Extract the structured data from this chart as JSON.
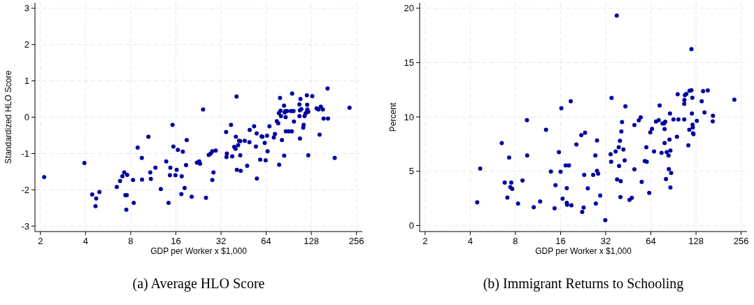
{
  "chart_data": [
    {
      "type": "scatter",
      "title": "(a) Average HLO Score",
      "xlabel": "GDP per Worker x $1,000",
      "ylabel": "Standardized HLO Score",
      "color": "#0000a0",
      "marker": "circle",
      "log": "x",
      "grid": true,
      "xlim": [
        1.84,
        280
      ],
      "xticks": [
        2,
        4,
        8,
        16,
        32,
        64,
        128,
        256
      ],
      "ylim": [
        -3.15,
        3.15
      ],
      "yticks": [
        -3,
        -2,
        -1,
        0,
        1,
        2,
        3
      ],
      "x": [
        2.12,
        3.93,
        4.43,
        4.71,
        4.66,
        4.95,
        6.46,
        6.79,
        7.04,
        7.24,
        7.58,
        7.37,
        7.53,
        7.48,
        8.29,
        8.38,
        8.9,
        9.49,
        9.52,
        10.5,
        10.8,
        10.9,
        11.7,
        12.7,
        13.8,
        14.3,
        14.7,
        14.6,
        15.2,
        15.4,
        16.2,
        15.9,
        16.5,
        17.8,
        17.5,
        17.4,
        18.3,
        18.7,
        18.9,
        20.4,
        22.1,
        22.9,
        23.2,
        24.3,
        25.4,
        26.5,
        27.3,
        28,
        29.5,
        28,
        28.5,
        34.6,
        35,
        34.8,
        37.3,
        38,
        39.2,
        40,
        40.2,
        40.6,
        40.8,
        41.6,
        42.2,
        43,
        43,
        43.3,
        46.1,
        47.8,
        49.5,
        49.7,
        53.2,
        54.7,
        55.3,
        55.5,
        58.4,
        59.6,
        60.4,
        62.6,
        63.5,
        64.9,
        65.4,
        67.3,
        72,
        73.2,
        75.4,
        77,
        78.1,
        77.8,
        79.2,
        79.8,
        80.3,
        81.5,
        84.2,
        84.4,
        85,
        86,
        86.3,
        86.6,
        88.2,
        90.7,
        93.6,
        94.9,
        95.3,
        97.4,
        98,
        106.7,
        106.7,
        107.5,
        108.3,
        107.5,
        109.8,
        113,
        113.8,
        115.4,
        117.1,
        119.2,
        119.6,
        120.1,
        120.5,
        122.2,
        122.2,
        129.9,
        138.9,
        142.9,
        145.4,
        148.1,
        152.9,
        154.5,
        164.2,
        165.3,
        183.3,
        230.1
      ],
      "values": [
        -1.65,
        -1.26,
        -2.13,
        -2.24,
        -2.45,
        -2.06,
        -1.92,
        -1.76,
        -1.63,
        -1.52,
        -1.59,
        -2.15,
        -2.15,
        -2.55,
        -1.73,
        -2.36,
        -0.84,
        -1.12,
        -1.72,
        -0.54,
        -1.52,
        -1.7,
        -1.39,
        -1.98,
        -1.22,
        -2.36,
        -1.39,
        -1.6,
        -0.21,
        -0.81,
        -1.45,
        -1.6,
        -0.9,
        -0.95,
        -1.63,
        -2.12,
        -1.95,
        -1.32,
        -0.63,
        -2.19,
        -1.25,
        -1.22,
        -1.28,
        0.21,
        -2.22,
        -1.04,
        -1,
        -0.94,
        -0.92,
        -1.73,
        -1.52,
        -0.41,
        -1,
        -1.1,
        -0.21,
        -1.08,
        -0.82,
        -0.87,
        -0.54,
        0.57,
        -1.45,
        -0.77,
        -0.65,
        -0.66,
        -1.05,
        -1.48,
        -0.65,
        -1.34,
        -0.69,
        -0.35,
        -0.25,
        -0.81,
        -0.45,
        -1.69,
        -1.17,
        -0.53,
        -0.54,
        -0.71,
        -1.19,
        -0.51,
        -0.94,
        -0.25,
        -0.56,
        -0.46,
        -0.11,
        -0.17,
        -1.31,
        0.11,
        0.53,
        0.18,
        0.03,
        -0.63,
        0.32,
        -1.06,
        0.13,
        0.17,
        0,
        -0.39,
        0.17,
        -0.39,
        0.17,
        -0.39,
        0.65,
        0.17,
        -0.12,
        0.35,
        0.03,
        -0.59,
        0.5,
        0.19,
        0.22,
        -0.29,
        -0.21,
        0.03,
        0.1,
        0.14,
        0.6,
        0.34,
        0.21,
        0.15,
        -1.05,
        0.58,
        0.24,
        0.21,
        -0.48,
        0.29,
        0.21,
        -0.04,
        0.79,
        -0.04,
        -1.12,
        0.26
      ]
    },
    {
      "type": "scatter",
      "title": "(b) Immigrant Returns to Schooling",
      "xlabel": "GDP per Worker x $1,000",
      "ylabel": "Percent",
      "color": "#0000a0",
      "marker": "circle",
      "log": "x",
      "grid": true,
      "xlim": [
        1.84,
        280
      ],
      "xticks": [
        2,
        4,
        8,
        16,
        32,
        64,
        128,
        256
      ],
      "ylim": [
        -0.55,
        20.5
      ],
      "yticks": [
        0,
        5,
        10,
        15,
        20
      ],
      "x": [
        4.45,
        4.66,
        6.49,
        6.79,
        7.07,
        7.27,
        7.4,
        7.51,
        7.62,
        8.33,
        8.92,
        9.55,
        9.58,
        10.6,
        11.7,
        12.8,
        13.8,
        14.6,
        14.8,
        15.6,
        16,
        16.2,
        16.5,
        17.3,
        18.2,
        18.7,
        17.6,
        17.6,
        17.7,
        18.9,
        20.4,
        22,
        23.3,
        23,
        24.3,
        22.8,
        22.3,
        26.4,
        27.3,
        28,
        28,
        28.5,
        27.5,
        29.4,
        31.8,
        34.5,
        34.8,
        35,
        37.3,
        37.9,
        38.1,
        39.1,
        39.3,
        39.8,
        40.3,
        40.1,
        40.7,
        41.1,
        42,
        42.8,
        43.3,
        46.1,
        47.8,
        49.7,
        49.7,
        53.2,
        54.8,
        55.6,
        58.3,
        60.1,
        59.7,
        62.4,
        63.4,
        65.1,
        67.2,
        69.2,
        72.2,
        73.2,
        75.4,
        76.5,
        78.4,
        79.8,
        79,
        79,
        80.7,
        81.6,
        84,
        84.3,
        85.2,
        85.8,
        86.4,
        87.4,
        86.4,
        90.5,
        95.5,
        96.6,
        97.6,
        106.8,
        106.8,
        107.1,
        107.9,
        110.3,
        113.8,
        115.5,
        115.9,
        119.3,
        119.3,
        120.2,
        121,
        121.4,
        121.9,
        122.3,
        123.2,
        129.6,
        139.7,
        142.7,
        145.8,
        153.3,
        166,
        165.4,
        230.7
      ],
      "values": [
        2.13,
        5.25,
        7.59,
        3.96,
        2.58,
        6.26,
        3.53,
        3.96,
        3.38,
        2.02,
        4.15,
        9.7,
        6.45,
        1.68,
        2.22,
        8.82,
        4.97,
        1.59,
        3.72,
        6.75,
        4.95,
        10.8,
        2.47,
        5.53,
        5.53,
        11.44,
        3.44,
        2.09,
        1.91,
        1.87,
        7.46,
        8.32,
        8.54,
        4.67,
        3.42,
        1.66,
        1.25,
        4.67,
        6.45,
        7.83,
        5.03,
        4.77,
        2.02,
        2.77,
        0.49,
        6.56,
        5.87,
        11.74,
        6.82,
        19.33,
        4.24,
        7.2,
        5.48,
        7.81,
        4.09,
        2.62,
        8.65,
        9.53,
        6.99,
        6,
        10.97,
        2.37,
        2.56,
        9.25,
        5.18,
        9.68,
        9.96,
        4.02,
        5.94,
        5.87,
        7.2,
        3.01,
        8.58,
        8.9,
        6.82,
        9.57,
        9.7,
        11.05,
        6.69,
        9.4,
        9.4,
        9.55,
        8.88,
        7.59,
        4.28,
        6.75,
        6.45,
        5.2,
        7.91,
        10.32,
        6.9,
        4.84,
        3.51,
        9.76,
        8.17,
        12.09,
        9.76,
        9.76,
        11.2,
        11.55,
        12,
        12.11,
        7.38,
        8.82,
        12.41,
        12.45,
        16.24,
        10.32,
        11.76,
        9.29,
        9.03,
        8.49,
        8.41,
        9.63,
        11.44,
        12.37,
        10.41,
        12.43,
        10.11,
        9.59,
        11.59
      ]
    }
  ]
}
